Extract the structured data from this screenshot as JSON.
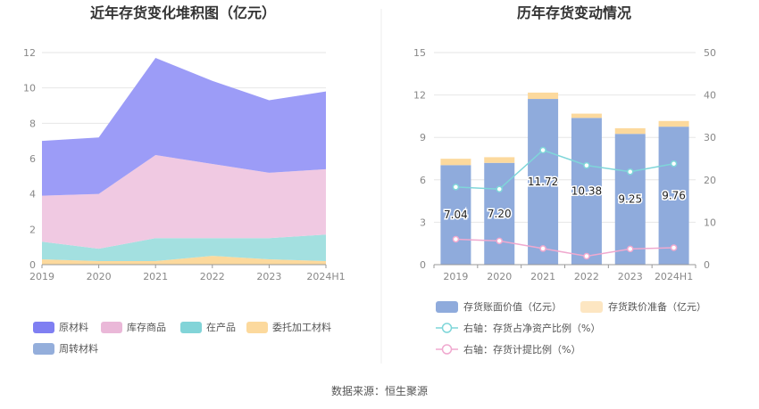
{
  "charts": {
    "left_title": "近年存货变化堆积图（亿元）",
    "right_title": "历年存货变动情况",
    "source": "数据来源：恒生聚源"
  },
  "chart_data": [
    {
      "type": "area",
      "title": "近年存货变化堆积图（亿元）",
      "x": [
        "2019",
        "2020",
        "2021",
        "2022",
        "2023",
        "2024H1"
      ],
      "ylim": [
        0,
        12
      ],
      "yticks": [
        0,
        2,
        4,
        6,
        8,
        10,
        12
      ],
      "stacked": true,
      "series": [
        {
          "name": "委托加工材料",
          "color": "#fcd99d",
          "values": [
            0.3,
            0.2,
            0.2,
            0.5,
            0.3,
            0.2
          ]
        },
        {
          "name": "在产品",
          "color": "#a3e0e0",
          "values": [
            1.0,
            0.7,
            1.3,
            1.0,
            1.2,
            1.5
          ]
        },
        {
          "name": "库存商品",
          "color": "#f0c9e2",
          "values": [
            2.6,
            3.1,
            4.7,
            4.2,
            3.7,
            3.7
          ]
        },
        {
          "name": "周转材料",
          "color": "#9ab5dc",
          "values": [
            0.0,
            0.0,
            0.0,
            0.0,
            0.0,
            0.0
          ]
        },
        {
          "name": "原材料",
          "color": "#9c9cf7",
          "values": [
            3.1,
            3.2,
            5.5,
            4.7,
            4.1,
            4.4
          ]
        }
      ],
      "legend": [
        {
          "name": "原材料",
          "color": "#7f7ff2"
        },
        {
          "name": "库存商品",
          "color": "#eab8d8"
        },
        {
          "name": "在产品",
          "color": "#82d4d8"
        },
        {
          "name": "委托加工材料",
          "color": "#fcd99d"
        },
        {
          "name": "周转材料",
          "color": "#94aedb"
        }
      ],
      "legend_position": "bottom",
      "grid": true
    },
    {
      "type": "bar",
      "title": "历年存货变动情况",
      "categories": [
        "2019",
        "2020",
        "2021",
        "2022",
        "2023",
        "2024H1"
      ],
      "ylim": [
        0,
        15
      ],
      "yticks": [
        0,
        3,
        6,
        9,
        12,
        15
      ],
      "y2lim": [
        0,
        50
      ],
      "y2ticks": [
        0,
        10,
        20,
        30,
        40,
        50
      ],
      "stacked": true,
      "series": [
        {
          "name": "存货账面价值（亿元）",
          "color": "#8fabdc",
          "values": [
            7.04,
            7.2,
            11.72,
            10.38,
            9.25,
            9.76
          ],
          "data_labels": [
            "7.04",
            "7.20",
            "11.72",
            "10.38",
            "9.25",
            "9.76"
          ]
        },
        {
          "name": "存货跌价准备（亿元）",
          "color": "#fcd99d",
          "values": [
            0.45,
            0.4,
            0.45,
            0.3,
            0.4,
            0.4
          ]
        },
        {
          "name": "右轴：存货占净资产比例（%）",
          "type": "line",
          "axis": "right",
          "color": "#7fd6d9",
          "values": [
            18.3,
            17.8,
            27.0,
            23.4,
            21.9,
            23.8
          ]
        },
        {
          "name": "右轴：存货计提比例（%）",
          "type": "line",
          "axis": "right",
          "color": "#f0a9cf",
          "values": [
            6.0,
            5.6,
            3.8,
            2.0,
            3.7,
            4.0
          ]
        }
      ],
      "legend": [
        {
          "name": "存货账面价值（亿元）",
          "color": "#8fabdc",
          "kind": "box"
        },
        {
          "name": "存货跌价准备（亿元）",
          "color": "#fde6c2",
          "kind": "box"
        },
        {
          "name": "右轴：存货占净资产比例（%）",
          "color": "#7fd6d9",
          "kind": "line"
        },
        {
          "name": "右轴：存货计提比例（%）",
          "color": "#f0a9cf",
          "kind": "line"
        }
      ],
      "legend_position": "bottom",
      "grid": true
    }
  ]
}
